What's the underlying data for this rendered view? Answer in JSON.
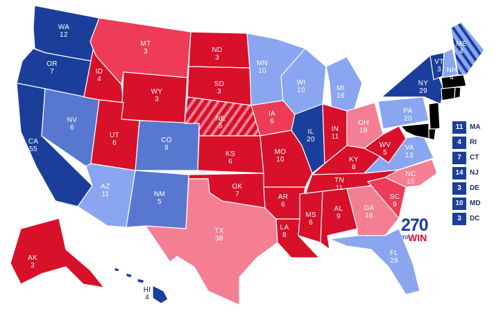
{
  "colors": {
    "safe_d": "#1c3e9b",
    "likely_d": "#5878d0",
    "lean_d": "#8aa6f0",
    "safe_r": "#d8102a",
    "likely_r": "#ee3b58",
    "lean_r": "#f47f93"
  },
  "states": [
    {
      "id": "WA",
      "votes": "12",
      "rating": "safe_d"
    },
    {
      "id": "OR",
      "votes": "7",
      "rating": "safe_d"
    },
    {
      "id": "CA",
      "votes": "55",
      "rating": "safe_d"
    },
    {
      "id": "NV",
      "votes": "6",
      "rating": "likely_d"
    },
    {
      "id": "ID",
      "votes": "4",
      "rating": "safe_r"
    },
    {
      "id": "MT",
      "votes": "3",
      "rating": "likely_r"
    },
    {
      "id": "WY",
      "votes": "3",
      "rating": "safe_r"
    },
    {
      "id": "UT",
      "votes": "6",
      "rating": "safe_r"
    },
    {
      "id": "AZ",
      "votes": "11",
      "rating": "lean_d"
    },
    {
      "id": "CO",
      "votes": "9",
      "rating": "likely_d"
    },
    {
      "id": "NM",
      "votes": "5",
      "rating": "likely_d"
    },
    {
      "id": "ND",
      "votes": "3",
      "rating": "safe_r"
    },
    {
      "id": "SD",
      "votes": "3",
      "rating": "safe_r"
    },
    {
      "id": "NE",
      "votes": "5",
      "rating": "safe_r"
    },
    {
      "id": "KS",
      "votes": "6",
      "rating": "safe_r"
    },
    {
      "id": "OK",
      "votes": "7",
      "rating": "safe_r"
    },
    {
      "id": "TX",
      "votes": "38",
      "rating": "lean_r"
    },
    {
      "id": "MN",
      "votes": "10",
      "rating": "lean_d"
    },
    {
      "id": "IA",
      "votes": "6",
      "rating": "likely_r"
    },
    {
      "id": "MO",
      "votes": "10",
      "rating": "safe_r"
    },
    {
      "id": "AR",
      "votes": "6",
      "rating": "safe_r"
    },
    {
      "id": "LA",
      "votes": "8",
      "rating": "safe_r"
    },
    {
      "id": "WI",
      "votes": "10",
      "rating": "lean_d"
    },
    {
      "id": "IL",
      "votes": "20",
      "rating": "safe_d"
    },
    {
      "id": "MI",
      "votes": "16",
      "rating": "lean_d"
    },
    {
      "id": "IN",
      "votes": "11",
      "rating": "safe_r"
    },
    {
      "id": "OH",
      "votes": "18",
      "rating": "lean_r"
    },
    {
      "id": "KY",
      "votes": "8",
      "rating": "safe_r"
    },
    {
      "id": "TN",
      "votes": "11",
      "rating": "safe_r"
    },
    {
      "id": "MS",
      "votes": "6",
      "rating": "safe_r"
    },
    {
      "id": "AL",
      "votes": "9",
      "rating": "safe_r"
    },
    {
      "id": "GA",
      "votes": "16",
      "rating": "lean_r"
    },
    {
      "id": "FL",
      "votes": "29",
      "rating": "lean_d"
    },
    {
      "id": "SC",
      "votes": "9",
      "rating": "likely_r"
    },
    {
      "id": "NC",
      "votes": "15",
      "rating": "lean_r"
    },
    {
      "id": "VA",
      "votes": "13",
      "rating": "lean_d"
    },
    {
      "id": "WV",
      "votes": "5",
      "rating": "safe_r"
    },
    {
      "id": "PA",
      "votes": "20",
      "rating": "lean_d"
    },
    {
      "id": "NY",
      "votes": "29",
      "rating": "safe_d"
    },
    {
      "id": "VT",
      "votes": "3",
      "rating": "safe_d"
    },
    {
      "id": "NH",
      "votes": "4",
      "rating": "lean_d"
    },
    {
      "id": "ME",
      "votes": "4",
      "rating": "lean_d"
    },
    {
      "id": "AK",
      "votes": "3",
      "rating": "safe_r"
    },
    {
      "id": "HI",
      "votes": "4",
      "rating": "safe_d"
    }
  ],
  "small_states": [
    {
      "abbr": "MA",
      "votes": "11"
    },
    {
      "abbr": "RI",
      "votes": "4"
    },
    {
      "abbr": "CT",
      "votes": "7"
    },
    {
      "abbr": "NJ",
      "votes": "14"
    },
    {
      "abbr": "DE",
      "votes": "3"
    },
    {
      "abbr": "MD",
      "votes": "10"
    },
    {
      "abbr": "DC",
      "votes": "3"
    }
  ],
  "logo": {
    "number": "270",
    "to": "TO",
    "win": "WIN"
  }
}
